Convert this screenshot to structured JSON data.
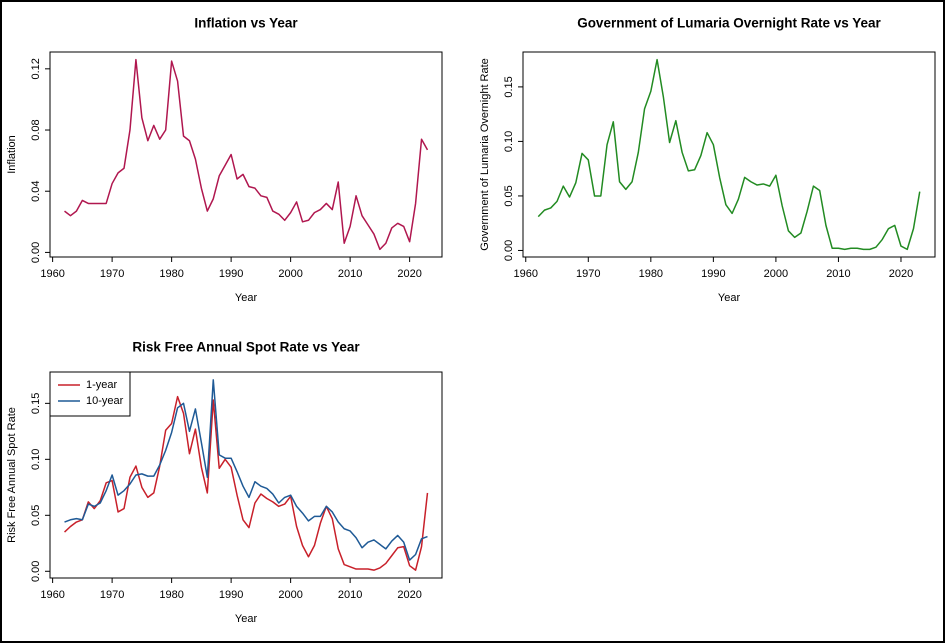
{
  "chart_data": [
    {
      "type": "line",
      "title": "Inflation vs Year",
      "xlabel": "Year",
      "ylabel": "Inflation",
      "color": "#b0174f",
      "x": [
        1962,
        1963,
        1964,
        1965,
        1966,
        1967,
        1968,
        1969,
        1970,
        1971,
        1972,
        1973,
        1974,
        1975,
        1976,
        1977,
        1978,
        1979,
        1980,
        1981,
        1982,
        1983,
        1984,
        1985,
        1986,
        1987,
        1988,
        1989,
        1990,
        1991,
        1992,
        1993,
        1994,
        1995,
        1996,
        1997,
        1998,
        1999,
        2000,
        2001,
        2002,
        2003,
        2004,
        2005,
        2006,
        2007,
        2008,
        2009,
        2010,
        2011,
        2012,
        2013,
        2014,
        2015,
        2016,
        2017,
        2018,
        2019,
        2020,
        2021,
        2022,
        2023
      ],
      "values": [
        0.027,
        0.024,
        0.027,
        0.034,
        0.032,
        0.032,
        0.032,
        0.032,
        0.045,
        0.052,
        0.055,
        0.08,
        0.126,
        0.088,
        0.073,
        0.083,
        0.074,
        0.08,
        0.125,
        0.112,
        0.076,
        0.073,
        0.061,
        0.042,
        0.027,
        0.035,
        0.05,
        0.057,
        0.064,
        0.048,
        0.051,
        0.043,
        0.042,
        0.037,
        0.036,
        0.027,
        0.025,
        0.021,
        0.026,
        0.033,
        0.02,
        0.021,
        0.026,
        0.028,
        0.032,
        0.028,
        0.046,
        0.006,
        0.017,
        0.037,
        0.024,
        0.018,
        0.012,
        0.002,
        0.006,
        0.016,
        0.019,
        0.017,
        0.007,
        0.032,
        0.074,
        0.067
      ],
      "xlim": [
        1959.56,
        2025.44
      ],
      "ylim": [
        -0.003,
        0.131
      ],
      "xticks": [
        1960,
        1970,
        1980,
        1990,
        2000,
        2010,
        2020
      ],
      "yticks": [
        {
          "value": 0,
          "label": "0.00"
        },
        0.04,
        0.08,
        0.12
      ]
    },
    {
      "type": "line",
      "title": "Government of Lumaria Overnight Rate vs Year",
      "xlabel": "Year",
      "ylabel": "Government of Lumaria Overnight Rate",
      "color": "#228b22",
      "x": [
        1962,
        1963,
        1964,
        1965,
        1966,
        1967,
        1968,
        1969,
        1970,
        1971,
        1972,
        1973,
        1974,
        1975,
        1976,
        1977,
        1978,
        1979,
        1980,
        1981,
        1982,
        1983,
        1984,
        1985,
        1986,
        1987,
        1988,
        1989,
        1990,
        1991,
        1992,
        1993,
        1994,
        1995,
        1996,
        1997,
        1998,
        1999,
        2000,
        2001,
        2002,
        2003,
        2004,
        2005,
        2006,
        2007,
        2008,
        2009,
        2010,
        2011,
        2012,
        2013,
        2014,
        2015,
        2016,
        2017,
        2018,
        2019,
        2020,
        2021,
        2022,
        2023
      ],
      "values": [
        0.031,
        0.037,
        0.039,
        0.045,
        0.059,
        0.049,
        0.062,
        0.089,
        0.083,
        0.05,
        0.05,
        0.097,
        0.118,
        0.063,
        0.056,
        0.063,
        0.09,
        0.13,
        0.146,
        0.175,
        0.141,
        0.099,
        0.119,
        0.09,
        0.073,
        0.074,
        0.087,
        0.108,
        0.097,
        0.067,
        0.042,
        0.034,
        0.047,
        0.067,
        0.063,
        0.06,
        0.061,
        0.059,
        0.069,
        0.041,
        0.018,
        0.012,
        0.016,
        0.036,
        0.059,
        0.055,
        0.023,
        0.002,
        0.002,
        0.001,
        0.002,
        0.002,
        0.001,
        0.001,
        0.003,
        0.01,
        0.02,
        0.023,
        0.004,
        0.001,
        0.02,
        0.054
      ],
      "xlim": [
        1959.56,
        2025.44
      ],
      "ylim": [
        -0.006,
        0.182
      ],
      "xticks": [
        1960,
        1970,
        1980,
        1990,
        2000,
        2010,
        2020
      ],
      "yticks": [
        {
          "value": 0,
          "label": "0.00"
        },
        0.05,
        {
          "value": 0.1,
          "label": "0.10"
        },
        0.15
      ]
    },
    {
      "type": "line",
      "title": "Risk Free Annual Spot Rate vs Year",
      "xlabel": "Year",
      "ylabel": "Risk Free Annual Spot Rate",
      "legend": "topleft",
      "x": [
        1962,
        1963,
        1964,
        1965,
        1966,
        1967,
        1968,
        1969,
        1970,
        1971,
        1972,
        1973,
        1974,
        1975,
        1976,
        1977,
        1978,
        1979,
        1980,
        1981,
        1982,
        1983,
        1984,
        1985,
        1986,
        1987,
        1988,
        1989,
        1990,
        1991,
        1992,
        1993,
        1994,
        1995,
        1996,
        1997,
        1998,
        1999,
        2000,
        2001,
        2002,
        2003,
        2004,
        2005,
        2006,
        2007,
        2008,
        2009,
        2010,
        2011,
        2012,
        2013,
        2014,
        2015,
        2016,
        2017,
        2018,
        2019,
        2020,
        2021,
        2022,
        2023
      ],
      "series": [
        {
          "name": "1-year",
          "color": "#c8202a",
          "values": [
            0.035,
            0.04,
            0.044,
            0.046,
            0.062,
            0.056,
            0.063,
            0.079,
            0.081,
            0.053,
            0.056,
            0.084,
            0.094,
            0.075,
            0.066,
            0.07,
            0.094,
            0.126,
            0.132,
            0.156,
            0.141,
            0.105,
            0.127,
            0.093,
            0.07,
            0.153,
            0.092,
            0.1,
            0.093,
            0.068,
            0.046,
            0.039,
            0.061,
            0.069,
            0.065,
            0.062,
            0.058,
            0.06,
            0.067,
            0.04,
            0.023,
            0.013,
            0.023,
            0.043,
            0.058,
            0.047,
            0.02,
            0.006,
            0.004,
            0.002,
            0.002,
            0.002,
            0.001,
            0.003,
            0.007,
            0.014,
            0.021,
            0.022,
            0.005,
            0.001,
            0.022,
            0.07
          ]
        },
        {
          "name": "10-year",
          "color": "#1f5a96",
          "values": [
            0.044,
            0.046,
            0.047,
            0.046,
            0.06,
            0.058,
            0.061,
            0.072,
            0.086,
            0.068,
            0.072,
            0.078,
            0.086,
            0.087,
            0.085,
            0.085,
            0.095,
            0.108,
            0.124,
            0.146,
            0.15,
            0.125,
            0.145,
            0.115,
            0.084,
            0.171,
            0.104,
            0.101,
            0.101,
            0.089,
            0.076,
            0.066,
            0.08,
            0.076,
            0.074,
            0.069,
            0.061,
            0.066,
            0.068,
            0.058,
            0.052,
            0.045,
            0.049,
            0.049,
            0.058,
            0.053,
            0.044,
            0.038,
            0.036,
            0.03,
            0.021,
            0.026,
            0.028,
            0.024,
            0.02,
            0.027,
            0.032,
            0.026,
            0.01,
            0.015,
            0.029,
            0.031
          ]
        }
      ],
      "xlim": [
        1959.56,
        2025.44
      ],
      "ylim": [
        -0.006,
        0.178
      ],
      "xticks": [
        1960,
        1970,
        1980,
        1990,
        2000,
        2010,
        2020
      ],
      "yticks": [
        {
          "value": 0,
          "label": "0.00"
        },
        0.05,
        {
          "value": 0.1,
          "label": "0.10"
        },
        0.15
      ]
    }
  ]
}
